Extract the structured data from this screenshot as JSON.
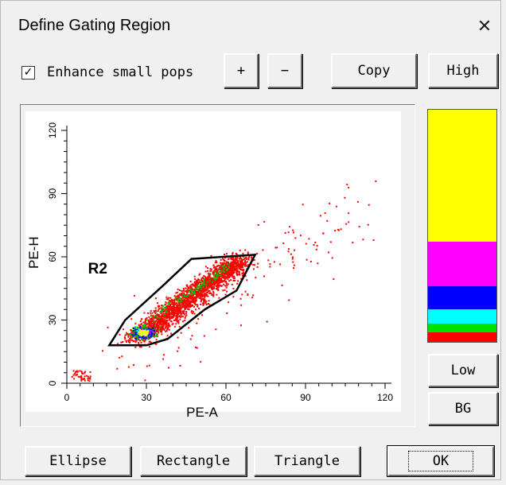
{
  "window": {
    "title": "Define Gating Region",
    "close_glyph": "✕"
  },
  "toolbar": {
    "enhance_label": "Enhance small pops",
    "enhance_checked": true,
    "check_glyph": "✓",
    "plus_label": "+",
    "minus_label": "−",
    "copy_label": "Copy",
    "high_label": "High"
  },
  "side": {
    "low_label": "Low",
    "bg_label": "BG"
  },
  "bottom": {
    "ellipse_label": "Ellipse",
    "rectangle_label": "Rectangle",
    "triangle_label": "Triangle",
    "ok_label": "OK"
  },
  "colorbar": {
    "bands": [
      {
        "color": "#ffff00",
        "fraction": 0.57
      },
      {
        "color": "#ff00ff",
        "fraction": 0.19
      },
      {
        "color": "#0000ff",
        "fraction": 0.1
      },
      {
        "color": "#00ffff",
        "fraction": 0.06
      },
      {
        "color": "#00e000",
        "fraction": 0.04
      },
      {
        "color": "#ff0000",
        "fraction": 0.04
      }
    ]
  },
  "chart_data": {
    "type": "scatter",
    "xlabel": "PE-A",
    "ylabel": "PE-H",
    "xlim": [
      0,
      120
    ],
    "ylim": [
      0,
      120
    ],
    "xticks": [
      0,
      30,
      60,
      90,
      120
    ],
    "yticks": [
      0,
      30,
      60,
      90,
      120
    ],
    "gate": {
      "name": "R2",
      "polygon": [
        [
          16,
          18
        ],
        [
          22,
          30
        ],
        [
          36,
          46
        ],
        [
          47,
          59
        ],
        [
          71,
          61
        ],
        [
          64,
          44
        ],
        [
          52,
          35
        ],
        [
          38,
          21
        ],
        [
          30,
          18
        ]
      ]
    },
    "cluster": {
      "from": [
        26,
        21
      ],
      "to": [
        66,
        59
      ]
    },
    "colors": {
      "main": "#ff0000",
      "dense1": "#00c000",
      "dense2": "#0000ff",
      "dense3": "#ffff00",
      "dense4": "#ff00ff",
      "dense5": "#00ffff"
    }
  }
}
